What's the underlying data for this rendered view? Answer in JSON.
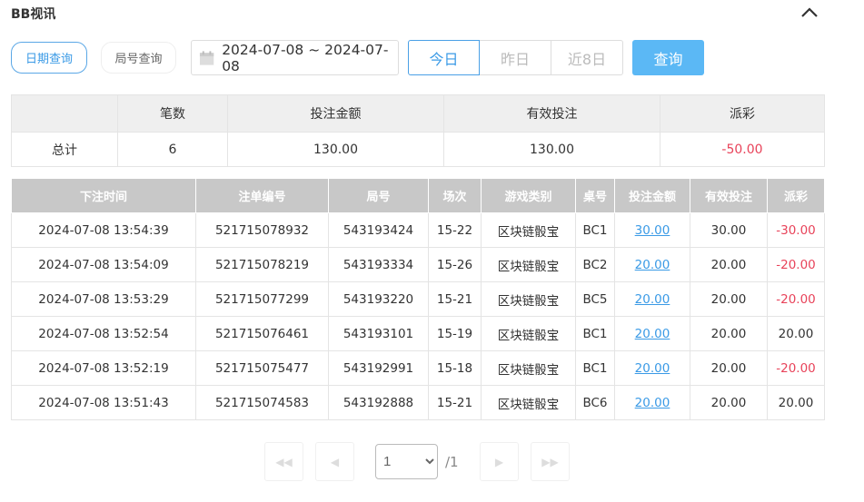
{
  "header": {
    "title": "BB视讯",
    "collapse_icon": "chevron-up-icon"
  },
  "filters": {
    "date_query": "日期查询",
    "round_query": "局号查询",
    "date_range": "2024-07-08 ~ 2024-07-08",
    "today": "今日",
    "yesterday": "昨日",
    "last8": "近8日",
    "search": "查询",
    "active": "今日"
  },
  "summary": {
    "headers": [
      "",
      "笔数",
      "投注金额",
      "有效投注",
      "派彩"
    ],
    "row": [
      "总计",
      "6",
      "130.00",
      "130.00",
      "-50.00"
    ]
  },
  "details": {
    "headers": [
      "下注时间",
      "注单编号",
      "局号",
      "场次",
      "游戏类别",
      "桌号",
      "投注金额",
      "有效投注",
      "派彩"
    ],
    "rows": [
      [
        "2024-07-08 13:54:39",
        "521715078932",
        "543193424",
        "15-22",
        "区块链骰宝",
        "BC1",
        "30.00",
        "30.00",
        "-30.00"
      ],
      [
        "2024-07-08 13:54:09",
        "521715078219",
        "543193334",
        "15-26",
        "区块链骰宝",
        "BC2",
        "20.00",
        "20.00",
        "-20.00"
      ],
      [
        "2024-07-08 13:53:29",
        "521715077299",
        "543193220",
        "15-21",
        "区块链骰宝",
        "BC5",
        "20.00",
        "20.00",
        "-20.00"
      ],
      [
        "2024-07-08 13:52:54",
        "521715076461",
        "543193101",
        "15-19",
        "区块链骰宝",
        "BC1",
        "20.00",
        "20.00",
        "20.00"
      ],
      [
        "2024-07-08 13:52:19",
        "521715075477",
        "543192991",
        "15-18",
        "区块链骰宝",
        "BC1",
        "20.00",
        "20.00",
        "-20.00"
      ],
      [
        "2024-07-08 13:51:43",
        "521715074583",
        "543192888",
        "15-21",
        "区块链骰宝",
        "BC6",
        "20.00",
        "20.00",
        "20.00"
      ]
    ]
  },
  "pagination": {
    "page": "1",
    "total": "/1"
  },
  "colors": {
    "accent": "#3a9ae6",
    "negative": "#e8435a",
    "search_button": "#5bb8f5"
  }
}
